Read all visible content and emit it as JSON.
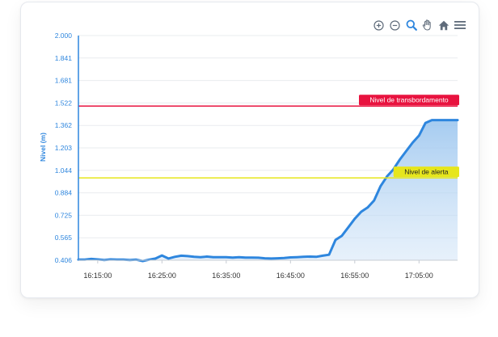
{
  "toolbar": {
    "icons": [
      "zoom-in-icon",
      "zoom-out-icon",
      "zoom-selection-icon",
      "pan-hand-icon",
      "home-reset-icon",
      "menu-icon"
    ]
  },
  "colors": {
    "series": "#2e86de",
    "fill": "#cfe3f7",
    "overflow": "#e8133f",
    "alert": "#e6e61c"
  },
  "chart_data": {
    "type": "area",
    "ylabel": "Nivel (m)",
    "xlabel": "",
    "ylim": [
      0.406,
      2.0
    ],
    "yticks": [
      "2.000",
      "1.841",
      "1.681",
      "1.522",
      "1.362",
      "1.203",
      "1.044",
      "0.884",
      "0.725",
      "0.565",
      "0.406"
    ],
    "xticks": [
      "16:15:00",
      "16:25:00",
      "16:35:00",
      "16:45:00",
      "16:55:00",
      "17:05:00"
    ],
    "xlim_minutes": [
      -3,
      56
    ],
    "series": [
      {
        "x": [
          -3,
          -2,
          -1,
          0,
          1,
          2,
          3,
          4,
          5,
          6,
          7,
          8,
          9,
          10,
          11,
          12,
          13,
          14,
          15,
          16,
          17,
          18,
          19,
          20,
          21,
          22,
          23,
          24,
          25,
          26,
          27,
          28,
          29,
          30,
          31,
          32,
          33,
          34,
          35,
          36,
          37,
          38,
          39,
          40,
          41,
          42,
          43,
          44,
          45,
          46,
          47,
          48,
          49,
          50,
          51,
          52,
          53,
          54,
          55,
          56
        ],
        "y": [
          0.41,
          0.41,
          0.415,
          0.412,
          0.408,
          0.412,
          0.41,
          0.41,
          0.408,
          0.41,
          0.4,
          0.41,
          0.418,
          0.44,
          0.418,
          0.43,
          0.438,
          0.435,
          0.43,
          0.428,
          0.432,
          0.428,
          0.428,
          0.428,
          0.425,
          0.428,
          0.425,
          0.425,
          0.424,
          0.42,
          0.418,
          0.42,
          0.422,
          0.426,
          0.428,
          0.43,
          0.432,
          0.43,
          0.438,
          0.445,
          0.55,
          0.58,
          0.64,
          0.7,
          0.75,
          0.78,
          0.83,
          0.93,
          1.0,
          1.05,
          1.12,
          1.18,
          1.24,
          1.29,
          1.38,
          1.4,
          1.4,
          1.4,
          1.4,
          1.4
        ]
      }
    ],
    "thresholds": [
      {
        "label": "Nivel de transbordamento",
        "value": 1.5
      },
      {
        "label": "Nivel de alerta",
        "value": 0.99
      }
    ],
    "grid": true,
    "legend": "none"
  }
}
